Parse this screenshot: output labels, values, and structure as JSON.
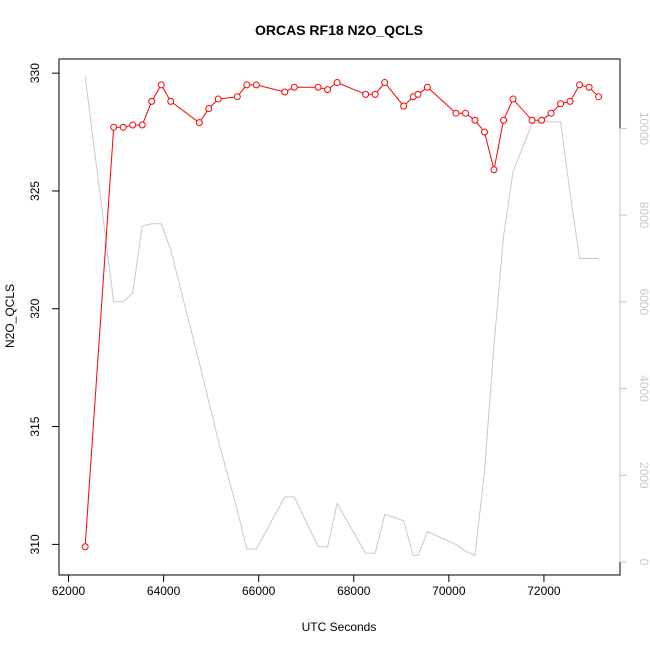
{
  "chart_data": {
    "type": "line",
    "title": "ORCAS RF18 N2O_QCLS",
    "xlabel": "UTC Seconds",
    "ylabel": "N2O_QCLS",
    "xlim": [
      61800,
      73600
    ],
    "ylim": [
      308.7,
      330.6
    ],
    "y2lim": [
      -300,
      11600
    ],
    "x_ticks": [
      62000,
      64000,
      66000,
      68000,
      70000,
      72000
    ],
    "y_ticks": [
      310,
      315,
      320,
      325,
      330
    ],
    "y2_ticks": [
      0,
      2000,
      4000,
      6000,
      8000,
      10000
    ],
    "grid": false,
    "legend": "none",
    "series": [
      {
        "axis": "left",
        "color": "#ff0000",
        "style": "line+circles",
        "points": [
          [
            62350,
            309.9
          ],
          [
            62950,
            327.7
          ],
          [
            63150,
            327.7
          ],
          [
            63350,
            327.8
          ],
          [
            63550,
            327.8
          ],
          [
            63750,
            328.8
          ],
          [
            63950,
            329.5
          ],
          [
            64150,
            328.8
          ],
          [
            64750,
            327.9
          ],
          [
            64950,
            328.5
          ],
          [
            65150,
            328.9
          ],
          [
            65550,
            329.0
          ],
          [
            65750,
            329.5
          ],
          [
            65950,
            329.5
          ],
          [
            66550,
            329.2
          ],
          [
            66750,
            329.4
          ],
          [
            67250,
            329.4
          ],
          [
            67450,
            329.3
          ],
          [
            67650,
            329.6
          ],
          [
            68250,
            329.1
          ],
          [
            68450,
            329.1
          ],
          [
            68650,
            329.6
          ],
          [
            69050,
            328.6
          ],
          [
            69250,
            329.0
          ],
          [
            69350,
            329.1
          ],
          [
            69550,
            329.4
          ],
          [
            70150,
            328.3
          ],
          [
            70350,
            328.3
          ],
          [
            70550,
            328.0
          ],
          [
            70750,
            327.5
          ],
          [
            70950,
            325.9
          ],
          [
            71150,
            328.0
          ],
          [
            71350,
            328.9
          ],
          [
            71750,
            328.0
          ],
          [
            71950,
            328.0
          ],
          [
            72150,
            328.3
          ],
          [
            72350,
            328.7
          ],
          [
            72550,
            328.8
          ],
          [
            72750,
            329.5
          ],
          [
            72950,
            329.4
          ],
          [
            73150,
            329.0
          ]
        ]
      },
      {
        "axis": "right",
        "color": "#c8c8c8",
        "style": "line",
        "points": [
          [
            62350,
            11200
          ],
          [
            62950,
            6000
          ],
          [
            63150,
            6000
          ],
          [
            63350,
            6200
          ],
          [
            63550,
            7750
          ],
          [
            63750,
            7800
          ],
          [
            63950,
            7800
          ],
          [
            64150,
            7200
          ],
          [
            64750,
            4600
          ],
          [
            64950,
            3700
          ],
          [
            65150,
            2800
          ],
          [
            65550,
            1200
          ],
          [
            65750,
            300
          ],
          [
            65950,
            300
          ],
          [
            66550,
            1500
          ],
          [
            66750,
            1500
          ],
          [
            67250,
            350
          ],
          [
            67450,
            350
          ],
          [
            67650,
            1350
          ],
          [
            68250,
            200
          ],
          [
            68450,
            200
          ],
          [
            68650,
            1100
          ],
          [
            69050,
            950
          ],
          [
            69250,
            150
          ],
          [
            69350,
            150
          ],
          [
            69550,
            700
          ],
          [
            70150,
            400
          ],
          [
            70350,
            250
          ],
          [
            70550,
            150
          ],
          [
            70750,
            2100
          ],
          [
            70950,
            5000
          ],
          [
            71150,
            7500
          ],
          [
            71350,
            9000
          ],
          [
            71750,
            10100
          ],
          [
            71950,
            10150
          ],
          [
            72150,
            10150
          ],
          [
            72350,
            10150
          ],
          [
            72550,
            8500
          ],
          [
            72750,
            7000
          ],
          [
            72950,
            7000
          ],
          [
            73150,
            7000
          ]
        ]
      }
    ]
  }
}
